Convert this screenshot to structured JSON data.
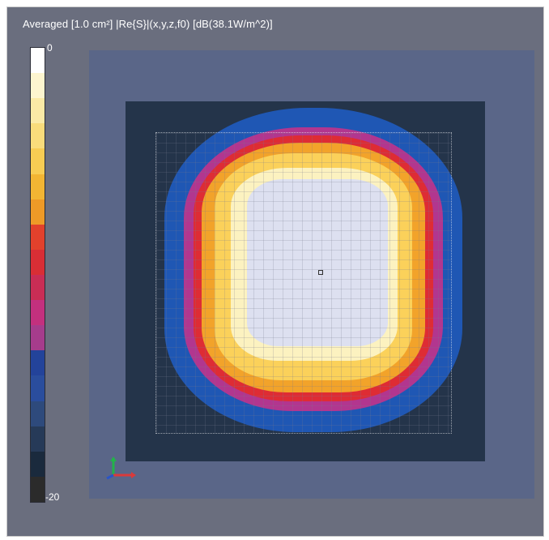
{
  "title": "Averaged [1.0 cm²] |Re{S}|(x,y,z,f0) [dB(38.1W/m^2)]",
  "colorbar": {
    "max_label": "0",
    "min_label": "-20",
    "colors": [
      "#ffffff",
      "#fdf5cf",
      "#fbeaa6",
      "#f9dc7b",
      "#f7cc53",
      "#f2b533",
      "#ee9a27",
      "#e2412c",
      "#d92e35",
      "#c92d55",
      "#c3307e",
      "#a63c8c",
      "#23439a",
      "#2a4d9d",
      "#2e4a7c",
      "#263a58",
      "#1a2a3d",
      "#2b2b2b"
    ]
  },
  "axes_gizmo": {
    "icon": "xyz-axes-icon",
    "colors": [
      "#23b34a",
      "#d93a3a",
      "#2a55c8"
    ]
  }
}
